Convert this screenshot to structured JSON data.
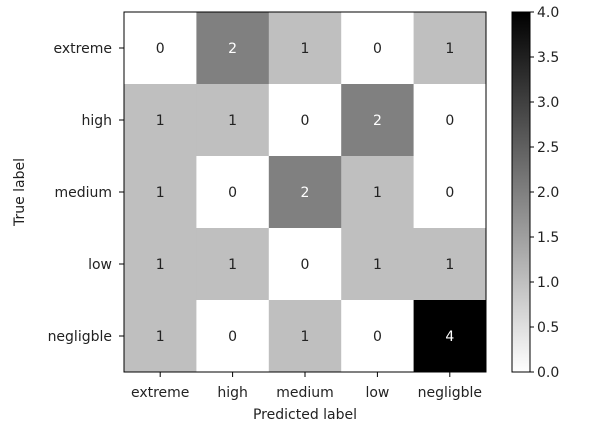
{
  "chart_data": {
    "type": "heatmap",
    "title": "",
    "xlabel": "Predicted label",
    "ylabel": "True label",
    "x_categories": [
      "extreme",
      "high",
      "medium",
      "low",
      "negligble"
    ],
    "y_categories": [
      "extreme",
      "high",
      "medium",
      "low",
      "negligble"
    ],
    "matrix": [
      [
        0,
        2,
        1,
        0,
        1
      ],
      [
        1,
        1,
        0,
        2,
        0
      ],
      [
        1,
        0,
        2,
        1,
        0
      ],
      [
        1,
        1,
        0,
        1,
        1
      ],
      [
        1,
        0,
        1,
        0,
        4
      ]
    ],
    "colorbar": {
      "min": 0,
      "max": 4,
      "ticks": [
        "0.0",
        "0.5",
        "1.0",
        "1.5",
        "2.0",
        "2.5",
        "3.0",
        "3.5",
        "4.0"
      ]
    },
    "colormap": "greys",
    "grid": false
  }
}
